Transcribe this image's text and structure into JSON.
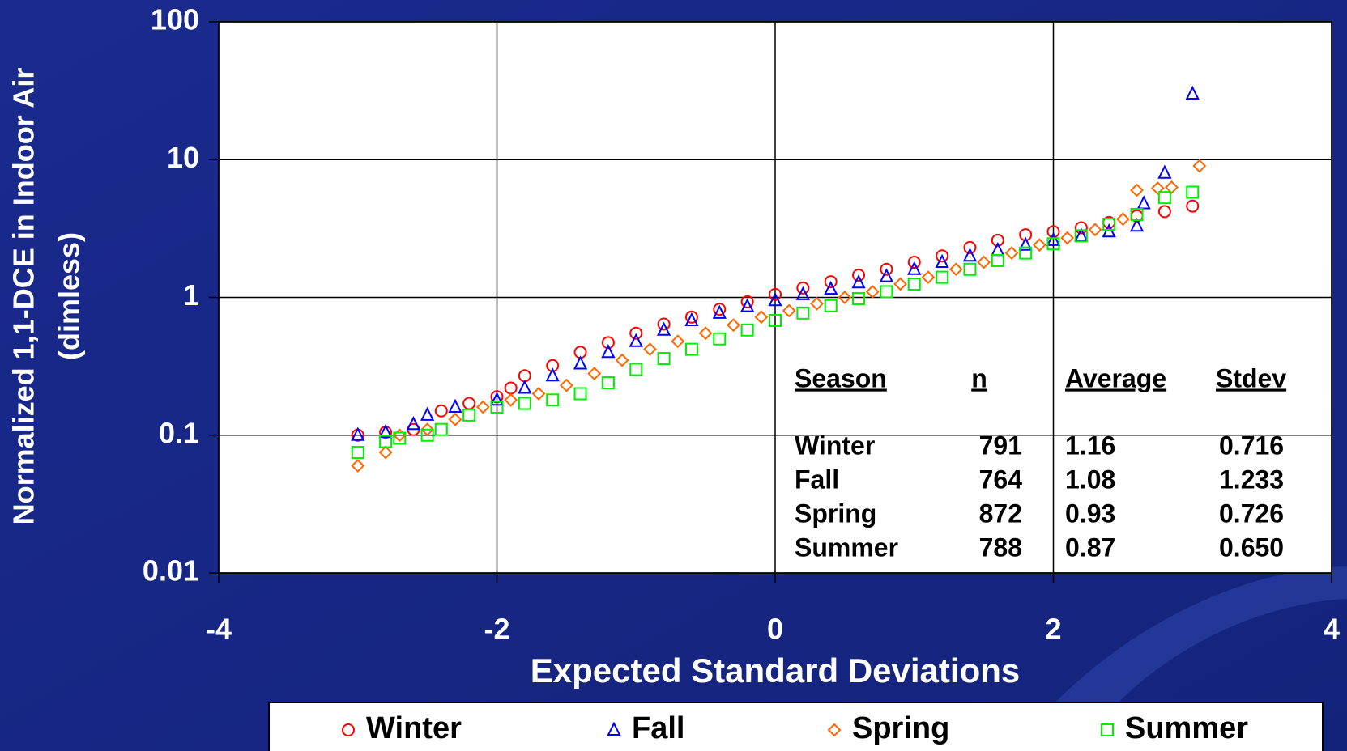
{
  "chart_data": {
    "type": "scatter",
    "xlabel": "Expected Standard Deviations",
    "ylabel": [
      "Normalized 1,1-DCE in Indoor Air",
      "(dimless)"
    ],
    "xlim": [
      -4,
      4
    ],
    "xticks": [
      -4,
      -2,
      0,
      2,
      4
    ],
    "ylim": [
      0.01,
      100
    ],
    "yticks": [
      0.01,
      0.1,
      1,
      10,
      100
    ],
    "log_y": true,
    "grid": true,
    "legend": "bottom",
    "series": [
      {
        "name": "Winter",
        "color": "#ff0000",
        "marker": "circle",
        "x": [
          -3,
          -2.8,
          -2.6,
          -2.4,
          -2.2,
          -2,
          -1.9,
          -1.8,
          -1.6,
          -1.4,
          -1.2,
          -1,
          -0.8,
          -0.6,
          -0.4,
          -0.2,
          0,
          0.2,
          0.4,
          0.6,
          0.8,
          1,
          1.2,
          1.4,
          1.6,
          1.8,
          2,
          2.2,
          2.4,
          2.6,
          2.8,
          3
        ],
        "values": [
          0.1,
          0.105,
          0.11,
          0.15,
          0.17,
          0.19,
          0.22,
          0.27,
          0.32,
          0.4,
          0.47,
          0.55,
          0.64,
          0.72,
          0.82,
          0.93,
          1.05,
          1.17,
          1.3,
          1.45,
          1.6,
          1.8,
          2.0,
          2.3,
          2.6,
          2.85,
          3.0,
          3.2,
          3.5,
          3.9,
          4.2,
          4.6
        ]
      },
      {
        "name": "Fall",
        "color": "#0000ff",
        "marker": "triangle",
        "x": [
          -3,
          -2.8,
          -2.6,
          -2.5,
          -2.3,
          -2,
          -1.8,
          -1.6,
          -1.4,
          -1.2,
          -1,
          -0.8,
          -0.6,
          -0.4,
          -0.2,
          0,
          0.2,
          0.4,
          0.6,
          0.8,
          1,
          1.2,
          1.4,
          1.6,
          1.8,
          2,
          2.2,
          2.4,
          2.6,
          2.65,
          2.8,
          3
        ],
        "values": [
          0.1,
          0.105,
          0.12,
          0.14,
          0.16,
          0.18,
          0.22,
          0.27,
          0.33,
          0.4,
          0.48,
          0.58,
          0.68,
          0.77,
          0.86,
          0.95,
          1.05,
          1.15,
          1.28,
          1.42,
          1.6,
          1.8,
          2.0,
          2.2,
          2.4,
          2.6,
          2.8,
          3.0,
          3.3,
          4.8,
          8,
          30
        ]
      },
      {
        "name": "Spring",
        "color": "#ff6600",
        "marker": "diamond",
        "x": [
          -3,
          -2.8,
          -2.7,
          -2.5,
          -2.3,
          -2.1,
          -1.9,
          -1.7,
          -1.5,
          -1.3,
          -1.1,
          -0.9,
          -0.7,
          -0.5,
          -0.3,
          -0.1,
          0.1,
          0.3,
          0.5,
          0.7,
          0.9,
          1.1,
          1.3,
          1.5,
          1.7,
          1.9,
          2.1,
          2.3,
          2.5,
          2.6,
          2.75,
          2.85,
          3.05
        ],
        "values": [
          0.06,
          0.075,
          0.1,
          0.11,
          0.13,
          0.16,
          0.18,
          0.2,
          0.23,
          0.28,
          0.35,
          0.42,
          0.48,
          0.55,
          0.63,
          0.72,
          0.8,
          0.9,
          1.0,
          1.1,
          1.25,
          1.4,
          1.6,
          1.8,
          2.1,
          2.4,
          2.7,
          3.1,
          3.7,
          6,
          6.2,
          6.3,
          9
        ]
      },
      {
        "name": "Summer",
        "color": "#00ee00",
        "marker": "square",
        "x": [
          -3,
          -2.8,
          -2.7,
          -2.5,
          -2.4,
          -2.2,
          -2,
          -1.8,
          -1.6,
          -1.4,
          -1.2,
          -1,
          -0.8,
          -0.6,
          -0.4,
          -0.2,
          0,
          0.2,
          0.4,
          0.6,
          0.8,
          1,
          1.2,
          1.4,
          1.6,
          1.8,
          2,
          2.2,
          2.4,
          2.6,
          2.8,
          3
        ],
        "values": [
          0.075,
          0.09,
          0.095,
          0.1,
          0.11,
          0.14,
          0.16,
          0.17,
          0.18,
          0.2,
          0.24,
          0.3,
          0.36,
          0.42,
          0.5,
          0.58,
          0.68,
          0.77,
          0.87,
          0.98,
          1.1,
          1.25,
          1.4,
          1.6,
          1.85,
          2.1,
          2.45,
          2.8,
          3.4,
          4.0,
          5.3,
          5.8
        ]
      }
    ],
    "table": {
      "columns": [
        "Season",
        "n",
        "Average",
        "Stdev"
      ],
      "rows": [
        [
          "Winter",
          "791",
          "1.16",
          "0.716"
        ],
        [
          "Fall",
          "764",
          "1.08",
          "1.233"
        ],
        [
          "Spring",
          "872",
          "0.93",
          "0.726"
        ],
        [
          "Summer",
          "788",
          "0.87",
          "0.650"
        ]
      ]
    }
  }
}
